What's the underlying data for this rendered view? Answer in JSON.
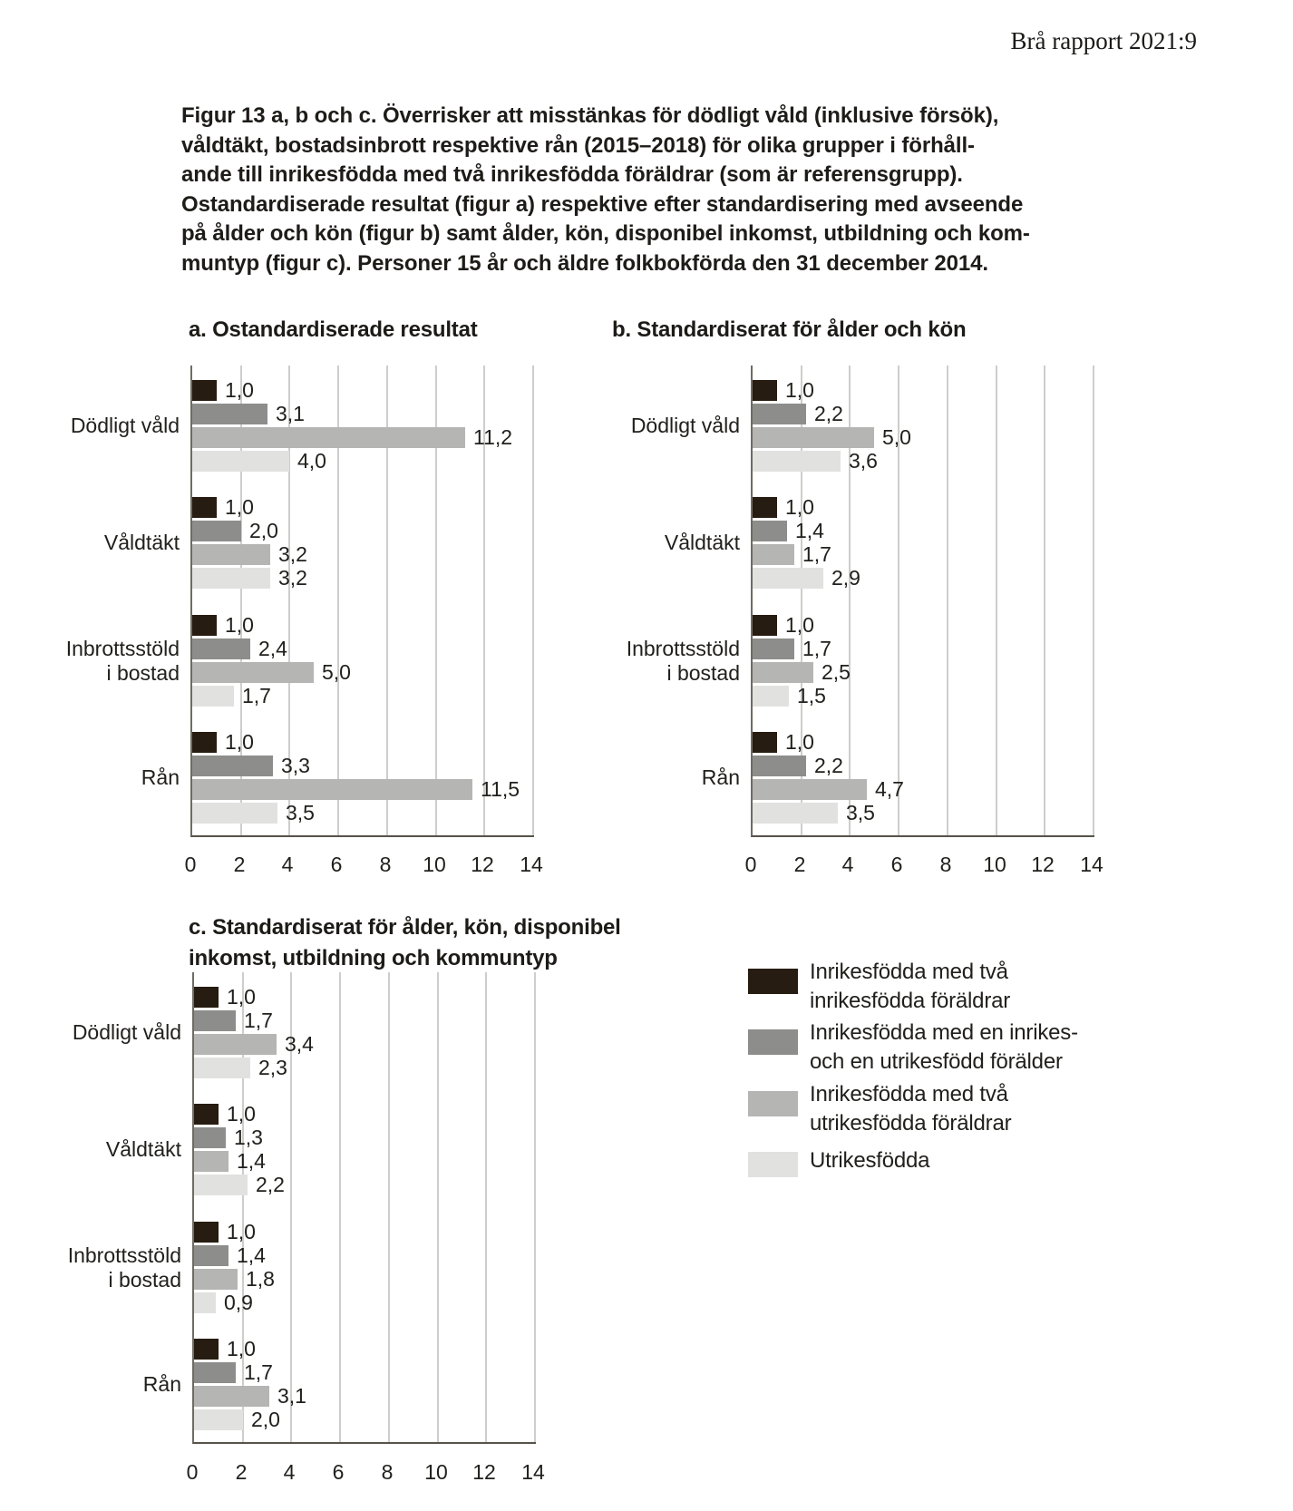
{
  "header": {
    "report_label": "Brå rapport 2021:9"
  },
  "caption_lines": [
    "Figur 13 a, b och c. Överrisker att misstänkas för dödligt våld (inklusive försök),",
    "våldtäkt, bostadsinbrott respektive rån (2015–2018) för olika grupper i förhåll-",
    "ande till inrikesfödda med två inrikesfödda föräldrar (som är referensgrupp).",
    "Ostandardiserade resultat (figur a) respektive efter standardisering med avseende",
    "på ålder och kön (figur b) samt ålder, kön, disponibel inkomst, utbildning och kom-",
    "muntyp (figur c). Personer 15 år och äldre folkbokförda den 31 december 2014."
  ],
  "colors": {
    "series": [
      "#271c11",
      "#8d8d8b",
      "#b5b5b3",
      "#e1e1df"
    ],
    "grid": "#cdcdcc",
    "axis": "#6f6b64",
    "baseline": "#57534c",
    "text": "#21201c"
  },
  "legend": {
    "items": [
      {
        "lines": [
          "Inrikesfödda med två",
          "inrikesfödda föräldrar"
        ]
      },
      {
        "lines": [
          "Inrikesfödda med en inrikes-",
          "och en utrikesfödd förälder"
        ]
      },
      {
        "lines": [
          "Inrikesfödda med två",
          "utrikesfödda föräldrar"
        ]
      },
      {
        "lines": [
          "Utrikesfödda"
        ]
      }
    ]
  },
  "chart_data": [
    {
      "type": "bar",
      "title": "a. Ostandardiserade resultat",
      "title_lines": [
        "a. Ostandardiserade resultat"
      ],
      "categories": [
        "Dödligt våld",
        "Våldtäkt",
        "Inbrottsstöld i bostad",
        "Rån"
      ],
      "category_lines": [
        [
          "Dödligt våld"
        ],
        [
          "Våldtäkt"
        ],
        [
          "Inbrottsstöld",
          "i bostad"
        ],
        [
          "Rån"
        ]
      ],
      "series": [
        {
          "name": "Inrikesfödda med två inrikesfödda föräldrar",
          "values": [
            1.0,
            1.0,
            1.0,
            1.0
          ]
        },
        {
          "name": "Inrikesfödda med en inrikes- och en utrikesfödd förälder",
          "values": [
            3.1,
            2.0,
            2.4,
            3.3
          ]
        },
        {
          "name": "Inrikesfödda med två utrikesfödda föräldrar",
          "values": [
            11.2,
            3.2,
            5.0,
            11.5
          ]
        },
        {
          "name": "Utrikesfödda",
          "values": [
            4.0,
            3.2,
            1.7,
            3.5
          ]
        }
      ],
      "xlabel": "",
      "xlim": [
        0,
        14
      ],
      "xticks": [
        0,
        2,
        4,
        6,
        8,
        10,
        12,
        14
      ],
      "grid": "vertical",
      "value_label_decimal_separator": ","
    },
    {
      "type": "bar",
      "title": "b. Standardiserat för ålder och kön",
      "title_lines": [
        "b. Standardiserat för ålder och kön"
      ],
      "categories": [
        "Dödligt våld",
        "Våldtäkt",
        "Inbrottsstöld i bostad",
        "Rån"
      ],
      "category_lines": [
        [
          "Dödligt våld"
        ],
        [
          "Våldtäkt"
        ],
        [
          "Inbrottsstöld",
          "i bostad"
        ],
        [
          "Rån"
        ]
      ],
      "series": [
        {
          "name": "Inrikesfödda med två inrikesfödda föräldrar",
          "values": [
            1.0,
            1.0,
            1.0,
            1.0
          ]
        },
        {
          "name": "Inrikesfödda med en inrikes- och en utrikesfödd förälder",
          "values": [
            2.2,
            1.4,
            1.7,
            2.2
          ]
        },
        {
          "name": "Inrikesfödda med två utrikesfödda föräldrar",
          "values": [
            5.0,
            1.7,
            2.5,
            4.7
          ]
        },
        {
          "name": "Utrikesfödda",
          "values": [
            3.6,
            2.9,
            1.5,
            3.5
          ]
        }
      ],
      "xlabel": "",
      "xlim": [
        0,
        14
      ],
      "xticks": [
        0,
        2,
        4,
        6,
        8,
        10,
        12,
        14
      ],
      "grid": "vertical",
      "value_label_decimal_separator": ","
    },
    {
      "type": "bar",
      "title": "c. Standardiserat för ålder, kön, disponibel inkomst, utbildning och kommuntyp",
      "title_lines": [
        "c. Standardiserat för ålder, kön, disponibel",
        "inkomst, utbildning och kommuntyp"
      ],
      "categories": [
        "Dödligt våld",
        "Våldtäkt",
        "Inbrottsstöld i bostad",
        "Rån"
      ],
      "category_lines": [
        [
          "Dödligt våld"
        ],
        [
          "Våldtäkt"
        ],
        [
          "Inbrottsstöld",
          "i bostad"
        ],
        [
          "Rån"
        ]
      ],
      "series": [
        {
          "name": "Inrikesfödda med två inrikesfödda föräldrar",
          "values": [
            1.0,
            1.0,
            1.0,
            1.0
          ]
        },
        {
          "name": "Inrikesfödda med en inrikes- och en utrikesfödd förälder",
          "values": [
            1.7,
            1.3,
            1.4,
            1.7
          ]
        },
        {
          "name": "Inrikesfödda med två utrikesfödda föräldrar",
          "values": [
            3.4,
            1.4,
            1.8,
            3.1
          ]
        },
        {
          "name": "Utrikesfödda",
          "values": [
            2.3,
            2.2,
            0.9,
            2.0
          ]
        }
      ],
      "xlabel": "",
      "xlim": [
        0,
        14
      ],
      "xticks": [
        0,
        2,
        4,
        6,
        8,
        10,
        12,
        14
      ],
      "grid": "vertical",
      "value_label_decimal_separator": ","
    }
  ]
}
